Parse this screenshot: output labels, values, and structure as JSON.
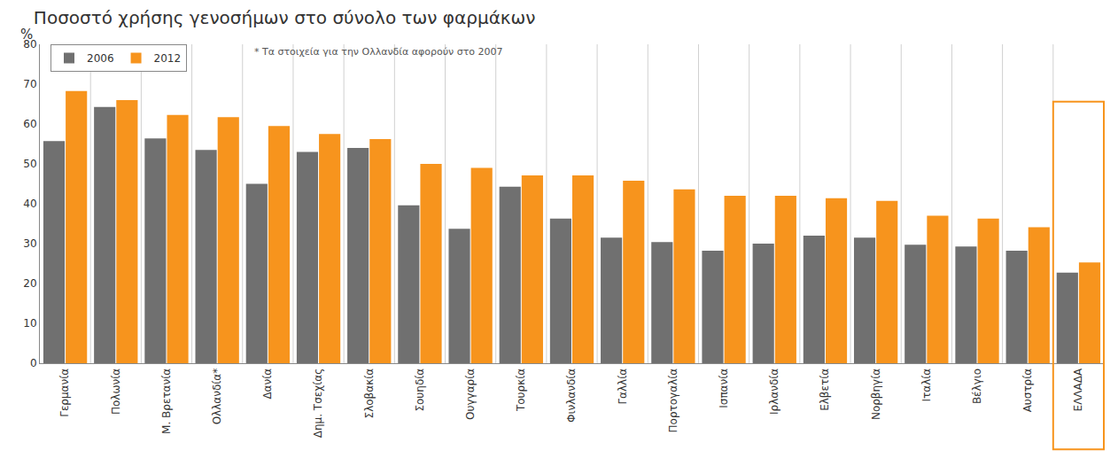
{
  "chart_data": {
    "type": "bar",
    "title": "Ποσοστό χρήσης γενοσήμων στο σύνολο των φαρμάκων",
    "ylabel": "%",
    "annotations": [
      "* Τα στοιχεία για την Ολλανδία αφορούν στο 2007"
    ],
    "categories": [
      "Γερμανία",
      "Πολωνία",
      "Μ. Βρετανία",
      "Ολλανδία*",
      "Δανία",
      "Δημ. Τσεχίας",
      "Σλοβακία",
      "Σουηδία",
      "Ουγγαρία",
      "Τουρκία",
      "Φινλανδία",
      "Γαλλία",
      "Πορτογαλία",
      "Ισπανία",
      "Ιρλανδία",
      "Ελβετία",
      "Νορβηγία",
      "Ιταλία",
      "Βέλγιο",
      "Αυστρία",
      "ΕΛΛΑΔΑ"
    ],
    "series": [
      {
        "name": "2006",
        "color": "#707070",
        "values": [
          55.7,
          64.3,
          56.4,
          53.5,
          45.0,
          53.0,
          54.0,
          39.6,
          33.7,
          44.3,
          36.3,
          31.5,
          30.4,
          28.2,
          30.0,
          32.0,
          31.5,
          29.7,
          29.3,
          28.2,
          22.7
        ]
      },
      {
        "name": "2012",
        "color": "#f7941d",
        "values": [
          68.3,
          66.0,
          62.3,
          61.7,
          59.5,
          57.5,
          56.2,
          50.0,
          49.0,
          47.1,
          47.1,
          45.8,
          43.6,
          42.0,
          42.0,
          41.4,
          40.7,
          37.0,
          36.3,
          34.1,
          25.3
        ]
      }
    ],
    "ylim": [
      0,
      80
    ],
    "yticks": [
      0,
      10,
      20,
      30,
      40,
      50,
      60,
      70,
      80
    ],
    "grid": false,
    "legend": "top left"
  }
}
